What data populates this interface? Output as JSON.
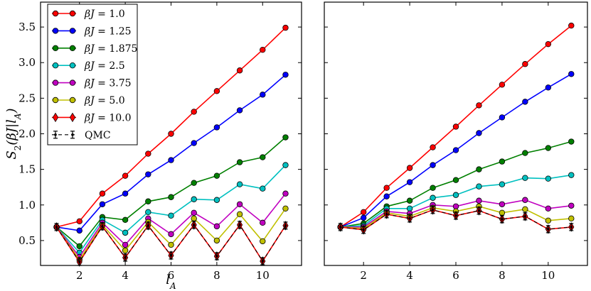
{
  "chart_data": [
    {
      "type": "line",
      "panel": "left",
      "xlabel": "l_A",
      "ylabel": "S_2(βJ|l_A)",
      "xlim": [
        0.3,
        11.7
      ],
      "ylim": [
        0.15,
        3.85
      ],
      "xticks": [
        2,
        4,
        6,
        8,
        10
      ],
      "yticks": [
        0.5,
        1.0,
        1.5,
        2.0,
        2.5,
        3.0,
        3.5
      ],
      "ytick_labels": [
        "0.5",
        "1.0",
        "1.5",
        "2.0",
        "2.5",
        "3.0",
        "3.5"
      ],
      "x": [
        1,
        2,
        3,
        4,
        5,
        6,
        7,
        8,
        9,
        10,
        11
      ],
      "legend_position": "top-left",
      "legend": [
        "βJ = 1.0",
        "βJ = 1.25",
        "βJ = 1.875",
        "βJ = 2.5",
        "βJ = 3.75",
        "βJ = 5.0",
        "βJ = 10.0",
        "QMC"
      ],
      "series": [
        {
          "name": "βJ = 1.0",
          "color": "#ff0000",
          "marker": "circle",
          "values": [
            0.69,
            0.77,
            1.16,
            1.41,
            1.72,
            2.0,
            2.31,
            2.6,
            2.89,
            3.18,
            3.49
          ]
        },
        {
          "name": "βJ = 1.25",
          "color": "#0000ff",
          "marker": "circle",
          "values": [
            0.69,
            0.64,
            1.01,
            1.16,
            1.43,
            1.63,
            1.87,
            2.09,
            2.33,
            2.55,
            2.83
          ]
        },
        {
          "name": "βJ = 1.875",
          "color": "#008000",
          "marker": "circle",
          "values": [
            0.69,
            0.42,
            0.83,
            0.79,
            1.05,
            1.11,
            1.31,
            1.41,
            1.6,
            1.67,
            1.95
          ]
        },
        {
          "name": "βJ = 2.5",
          "color": "#00c0c0",
          "marker": "circle",
          "values": [
            0.69,
            0.33,
            0.79,
            0.61,
            0.9,
            0.85,
            1.08,
            1.07,
            1.29,
            1.23,
            1.56
          ]
        },
        {
          "name": "βJ = 3.75",
          "color": "#c000c0",
          "marker": "circle",
          "values": [
            0.69,
            0.27,
            0.75,
            0.44,
            0.81,
            0.59,
            0.89,
            0.7,
            1.01,
            0.75,
            1.16
          ]
        },
        {
          "name": "βJ = 5.0",
          "color": "#c0c000",
          "marker": "circle",
          "values": [
            0.69,
            0.23,
            0.72,
            0.36,
            0.76,
            0.44,
            0.81,
            0.5,
            0.87,
            0.49,
            0.95
          ]
        },
        {
          "name": "βJ = 10.0",
          "color": "#ff0000",
          "marker": "diamond",
          "values": [
            0.69,
            0.2,
            0.7,
            0.26,
            0.71,
            0.29,
            0.72,
            0.28,
            0.72,
            0.21,
            0.71
          ]
        },
        {
          "name": "QMC",
          "color": "#000000",
          "marker": "errorbar",
          "values": [
            0.69,
            0.2,
            0.7,
            0.26,
            0.71,
            0.29,
            0.72,
            0.28,
            0.72,
            0.21,
            0.71
          ]
        }
      ]
    },
    {
      "type": "line",
      "panel": "right",
      "xlim": [
        0.3,
        11.7
      ],
      "ylim": [
        0.15,
        3.85
      ],
      "xticks": [
        2,
        4,
        6,
        8,
        10
      ],
      "x": [
        1,
        2,
        3,
        4,
        5,
        6,
        7,
        8,
        9,
        10,
        11
      ],
      "series": [
        {
          "name": "βJ = 1.0",
          "color": "#ff0000",
          "marker": "circle",
          "values": [
            0.69,
            0.9,
            1.24,
            1.52,
            1.81,
            2.1,
            2.4,
            2.69,
            2.98,
            3.26,
            3.52
          ]
        },
        {
          "name": "βJ = 1.25",
          "color": "#0000ff",
          "marker": "circle",
          "values": [
            0.69,
            0.82,
            1.12,
            1.32,
            1.56,
            1.77,
            2.01,
            2.23,
            2.45,
            2.65,
            2.84
          ]
        },
        {
          "name": "βJ = 1.875",
          "color": "#008000",
          "marker": "circle",
          "values": [
            0.69,
            0.74,
            0.98,
            1.06,
            1.24,
            1.35,
            1.5,
            1.61,
            1.73,
            1.8,
            1.89
          ]
        },
        {
          "name": "βJ = 2.5",
          "color": "#00c0c0",
          "marker": "circle",
          "values": [
            0.69,
            0.71,
            0.95,
            0.95,
            1.1,
            1.14,
            1.26,
            1.29,
            1.38,
            1.37,
            1.42
          ]
        },
        {
          "name": "βJ = 3.75",
          "color": "#c000c0",
          "marker": "circle",
          "values": [
            0.69,
            0.69,
            0.91,
            0.88,
            1.0,
            0.98,
            1.06,
            1.01,
            1.07,
            0.95,
            0.99
          ]
        },
        {
          "name": "βJ = 5.0",
          "color": "#c0c000",
          "marker": "circle",
          "values": [
            0.69,
            0.67,
            0.89,
            0.84,
            0.96,
            0.91,
            0.98,
            0.89,
            0.94,
            0.78,
            0.81
          ]
        },
        {
          "name": "βJ = 10.0",
          "color": "#ff0000",
          "marker": "diamond",
          "values": [
            0.69,
            0.65,
            0.87,
            0.81,
            0.93,
            0.85,
            0.92,
            0.8,
            0.84,
            0.66,
            0.69
          ]
        },
        {
          "name": "QMC",
          "color": "#000000",
          "marker": "errorbar",
          "values": [
            0.69,
            0.65,
            0.87,
            0.81,
            0.93,
            0.85,
            0.92,
            0.8,
            0.84,
            0.66,
            0.69
          ]
        }
      ]
    }
  ]
}
